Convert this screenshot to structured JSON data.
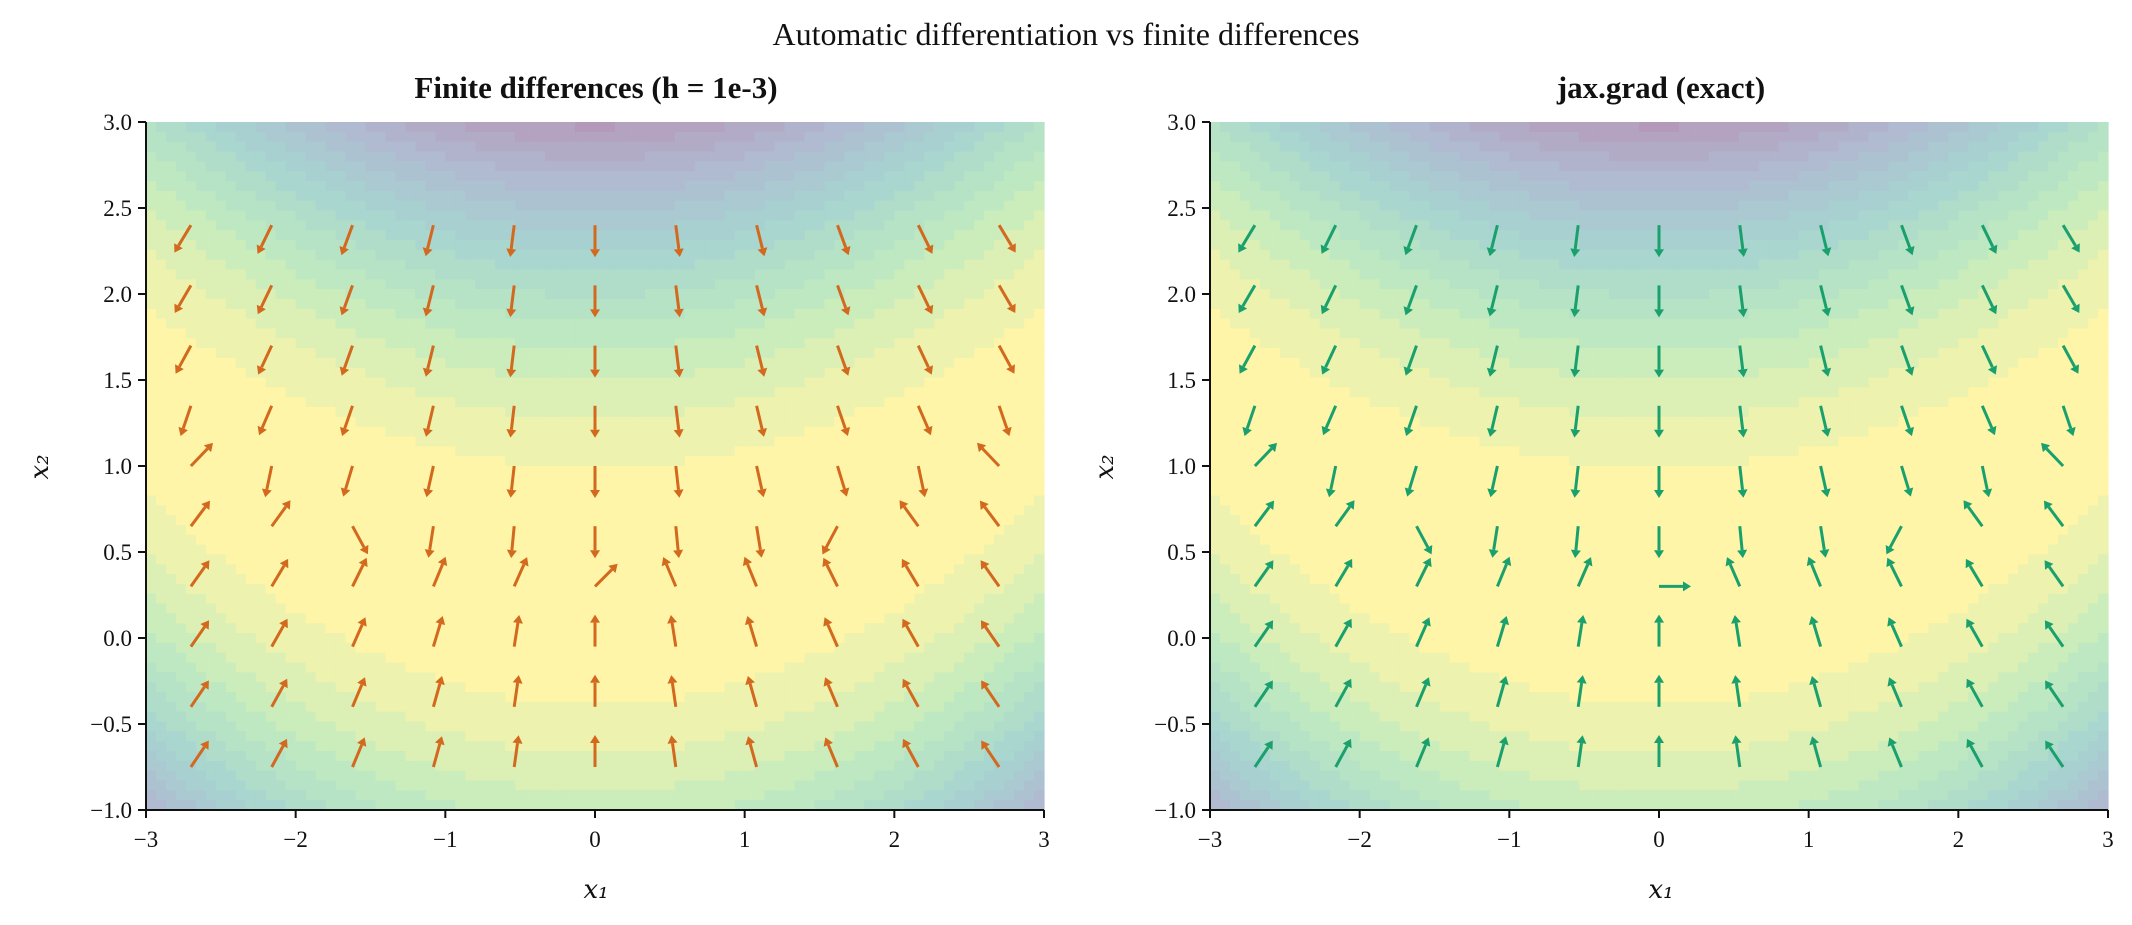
{
  "figure": {
    "title": "Automatic differentiation vs finite differences"
  },
  "colors": {
    "finite_arrows": "#d2691e",
    "exact_arrows": "#1aa06d",
    "colormap": [
      "#440154",
      "#3b528b",
      "#21918c",
      "#5ec962",
      "#fde725"
    ],
    "axes": "#111111"
  },
  "chart_data": [
    {
      "type": "contour+quiver",
      "title": "Finite differences (h = 1e-3)",
      "xlabel": "x₁",
      "ylabel": "x₂",
      "xlim": [
        -3,
        3
      ],
      "ylim": [
        -1,
        3
      ],
      "x_ticks": [
        "−3",
        "−2",
        "−1",
        "0",
        "1",
        "2",
        "3"
      ],
      "y_ticks": [
        "−1.0",
        "−0.5",
        "0.0",
        "0.5",
        "1.0",
        "1.5",
        "2.0",
        "2.5",
        "3.0"
      ],
      "background": "filled contours of f(x1, x2), viridis colormap, alpha 0.4, max near (0, 0.3), decreasing outward",
      "arrow_color": "#d2691e",
      "grid": false,
      "arrows_x": [
        -2.7,
        -2.16,
        -1.62,
        -1.08,
        -0.54,
        0.0,
        0.54,
        1.08,
        1.62,
        2.16,
        2.7
      ],
      "arrows_y": [
        -0.75,
        -0.4,
        -0.05,
        0.3,
        0.65,
        1.0,
        1.35,
        1.7,
        2.05,
        2.4
      ]
    },
    {
      "type": "contour+quiver",
      "title": "jax.grad (exact)",
      "xlabel": "x₁",
      "ylabel": "x₂",
      "xlim": [
        -3,
        3
      ],
      "ylim": [
        -1,
        3
      ],
      "x_ticks": [
        "−3",
        "−2",
        "−1",
        "0",
        "1",
        "2",
        "3"
      ],
      "y_ticks": [
        "−1.0",
        "−0.5",
        "0.0",
        "0.5",
        "1.0",
        "1.5",
        "2.0",
        "2.5",
        "3.0"
      ],
      "background": "filled contours of f(x1, x2), viridis colormap, alpha 0.4, max near (0, 0.3), decreasing outward",
      "arrow_color": "#1aa06d",
      "grid": false,
      "arrows_x": [
        -2.7,
        -2.16,
        -1.62,
        -1.08,
        -0.54,
        0.0,
        0.54,
        1.08,
        1.62,
        2.16,
        2.7
      ],
      "arrows_y": [
        -0.75,
        -0.4,
        -0.05,
        0.3,
        0.65,
        1.0,
        1.35,
        1.7,
        2.05,
        2.4
      ]
    }
  ]
}
